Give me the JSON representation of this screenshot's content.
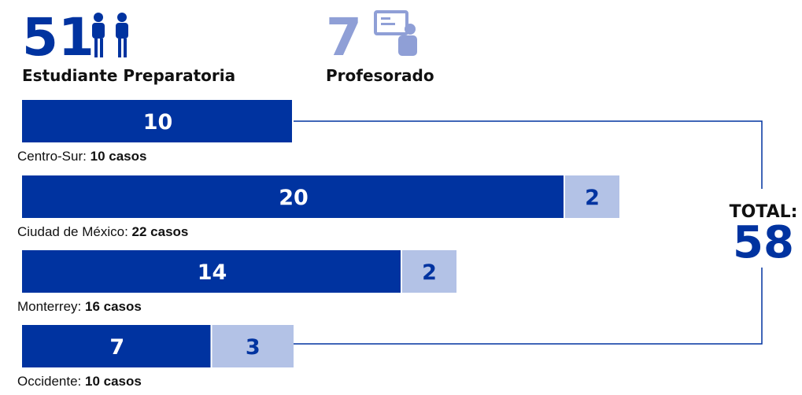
{
  "chart_data": {
    "type": "bar",
    "orientation": "horizontal",
    "stacked": true,
    "categories": [
      "Centro-Sur:",
      "Ciudad de México:",
      "Monterrey:",
      "Occidente:"
    ],
    "category_totals": [
      "10 casos",
      "22 casos",
      "16 casos",
      "10 casos"
    ],
    "series": [
      {
        "name": "Estudiante Preparatoria",
        "color": "#0033a0",
        "label_color": "#ffffff",
        "total": 51,
        "values": [
          10,
          20,
          14,
          7
        ]
      },
      {
        "name": "Profesorado",
        "color": "#b3c2e6",
        "label_color": "#0033a0",
        "total": 7,
        "values": [
          0,
          2,
          2,
          3
        ]
      }
    ],
    "total_label": "TOTAL:",
    "total": 58
  }
}
